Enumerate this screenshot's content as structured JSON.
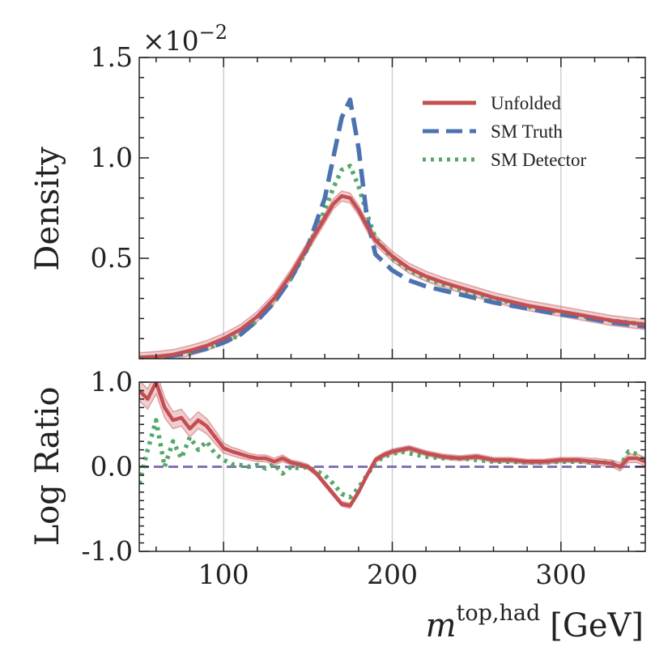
{
  "chart_data": [
    {
      "type": "line",
      "panel": "top",
      "ylabel": "Density",
      "multiplier": "×10",
      "multiplier_exp": "−2",
      "xlim": [
        50,
        350
      ],
      "ylim": [
        0,
        1.5
      ],
      "yticks": [
        0.5,
        1.0,
        1.5
      ],
      "ytick_labels": [
        "0.5",
        "1.0",
        "1.5"
      ],
      "grid": "x",
      "legend": "top-right",
      "x": [
        50,
        60,
        70,
        80,
        90,
        100,
        110,
        120,
        130,
        140,
        150,
        160,
        165,
        170,
        175,
        180,
        185,
        190,
        200,
        210,
        220,
        230,
        240,
        250,
        260,
        270,
        280,
        290,
        300,
        310,
        320,
        330,
        340,
        350
      ],
      "series": [
        {
          "name": "Unfolded",
          "color": "#c44e52",
          "style": "solid",
          "values": [
            0.005,
            0.01,
            0.02,
            0.04,
            0.065,
            0.1,
            0.145,
            0.21,
            0.3,
            0.42,
            0.56,
            0.7,
            0.77,
            0.81,
            0.8,
            0.74,
            0.66,
            0.59,
            0.51,
            0.45,
            0.41,
            0.38,
            0.355,
            0.33,
            0.305,
            0.285,
            0.265,
            0.25,
            0.235,
            0.22,
            0.205,
            0.19,
            0.18,
            0.17
          ],
          "band": 0.025
        },
        {
          "name": "SM Truth",
          "color": "#4c72b0",
          "style": "dashed",
          "values": [
            0.004,
            0.008,
            0.015,
            0.03,
            0.05,
            0.08,
            0.12,
            0.19,
            0.28,
            0.4,
            0.56,
            0.8,
            1.0,
            1.2,
            1.29,
            1.05,
            0.7,
            0.52,
            0.44,
            0.39,
            0.36,
            0.34,
            0.32,
            0.3,
            0.28,
            0.265,
            0.25,
            0.235,
            0.22,
            0.21,
            0.195,
            0.18,
            0.17,
            0.16
          ]
        },
        {
          "name": "SM Detector",
          "color": "#55a868",
          "style": "dotted",
          "values": [
            0.004,
            0.008,
            0.015,
            0.03,
            0.05,
            0.08,
            0.12,
            0.19,
            0.28,
            0.4,
            0.55,
            0.74,
            0.85,
            0.94,
            0.96,
            0.86,
            0.72,
            0.6,
            0.5,
            0.44,
            0.4,
            0.37,
            0.345,
            0.32,
            0.3,
            0.28,
            0.26,
            0.245,
            0.23,
            0.215,
            0.2,
            0.19,
            0.18,
            0.17
          ]
        }
      ]
    },
    {
      "type": "line",
      "panel": "bottom",
      "ylabel": "Log Ratio",
      "xlabel": "m",
      "xlabel_sup": "top,had",
      "xlabel_unit": "[GeV]",
      "xlim": [
        50,
        350
      ],
      "ylim": [
        -1.0,
        1.0
      ],
      "yticks": [
        -1.0,
        0.0,
        1.0
      ],
      "ytick_labels": [
        "-1.0",
        "0.0",
        "1.0"
      ],
      "xticks": [
        100,
        200,
        300
      ],
      "xtick_labels": [
        "100",
        "200",
        "300"
      ],
      "grid": "x",
      "reference_line": {
        "value": 0.0,
        "color": "#8172b2"
      },
      "x": [
        50,
        55,
        60,
        65,
        70,
        75,
        80,
        85,
        90,
        95,
        100,
        105,
        110,
        115,
        120,
        125,
        130,
        135,
        140,
        145,
        150,
        155,
        160,
        165,
        170,
        175,
        180,
        185,
        190,
        195,
        200,
        205,
        210,
        220,
        230,
        240,
        250,
        260,
        270,
        280,
        290,
        300,
        310,
        320,
        330,
        335,
        340,
        345,
        350
      ],
      "series": [
        {
          "name": "Unfolded",
          "color": "#c44e52",
          "style": "solid",
          "values": [
            0.9,
            0.8,
            1.0,
            0.7,
            0.55,
            0.58,
            0.45,
            0.55,
            0.48,
            0.35,
            0.22,
            0.18,
            0.15,
            0.12,
            0.1,
            0.1,
            0.06,
            0.1,
            0.05,
            0.03,
            0.0,
            -0.08,
            -0.2,
            -0.32,
            -0.44,
            -0.46,
            -0.3,
            -0.1,
            0.08,
            0.14,
            0.18,
            0.2,
            0.22,
            0.16,
            0.12,
            0.1,
            0.12,
            0.08,
            0.08,
            0.06,
            0.06,
            0.08,
            0.08,
            0.06,
            0.04,
            0.0,
            0.1,
            0.1,
            0.06
          ],
          "band_width": [
            0.12,
            0.12,
            0.14,
            0.12,
            0.1,
            0.1,
            0.1,
            0.1,
            0.09,
            0.08,
            0.06,
            0.05,
            0.05,
            0.04,
            0.04,
            0.04,
            0.04,
            0.04,
            0.03,
            0.03,
            0.03,
            0.03,
            0.03,
            0.03,
            0.03,
            0.03,
            0.03,
            0.03,
            0.03,
            0.03,
            0.03,
            0.03,
            0.03,
            0.03,
            0.03,
            0.03,
            0.03,
            0.03,
            0.03,
            0.03,
            0.03,
            0.03,
            0.03,
            0.04,
            0.04,
            0.05,
            0.05,
            0.05,
            0.05
          ]
        },
        {
          "name": "SM Detector",
          "color": "#55a868",
          "style": "dotted",
          "values": [
            -0.2,
            0.2,
            0.55,
            0.0,
            0.3,
            0.1,
            0.35,
            0.2,
            0.3,
            0.15,
            0.08,
            0.03,
            0.02,
            0.0,
            0.02,
            -0.02,
            0.03,
            -0.08,
            0.0,
            -0.02,
            0.0,
            -0.05,
            -0.1,
            -0.2,
            -0.32,
            -0.36,
            -0.25,
            -0.1,
            0.05,
            0.12,
            0.15,
            0.18,
            0.16,
            0.12,
            0.1,
            0.1,
            0.08,
            0.06,
            0.06,
            0.05,
            0.05,
            0.06,
            0.06,
            0.05,
            0.05,
            0.0,
            0.18,
            0.15,
            0.05
          ]
        }
      ]
    }
  ]
}
